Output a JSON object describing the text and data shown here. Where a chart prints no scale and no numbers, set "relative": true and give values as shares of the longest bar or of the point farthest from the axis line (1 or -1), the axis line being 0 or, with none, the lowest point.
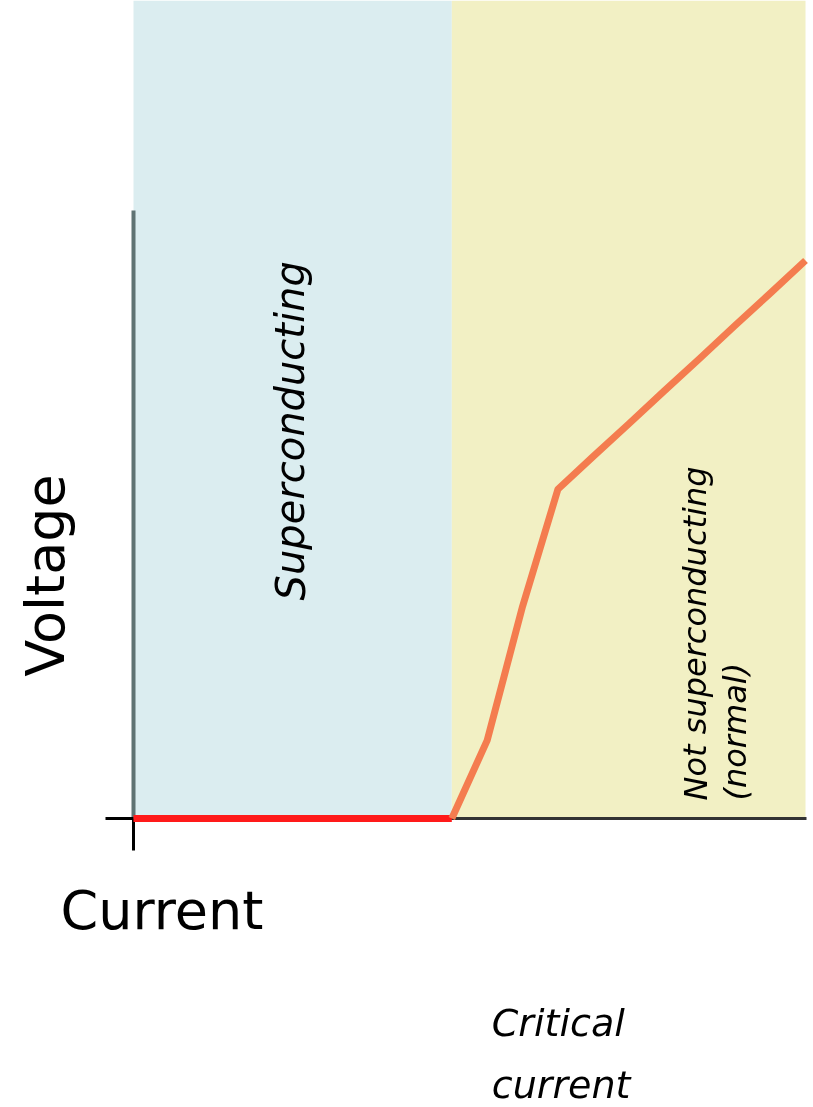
{
  "chart_data": {
    "type": "line",
    "relative": true,
    "xlabel": "Current",
    "ylabel": "Voltage",
    "line_style": "solid",
    "categories": [
      null,
      null,
      null,
      null,
      null,
      null,
      null,
      null,
      null,
      null,
      null,
      null,
      null,
      null,
      null,
      null,
      null,
      null,
      null,
      null
    ],
    "series": [
      {
        "color": "#ff1a1a",
        "values": [
          0,
          0,
          0,
          0,
          0,
          0,
          0,
          0,
          0,
          0,
          null,
          null,
          null,
          null,
          null,
          null,
          null,
          null,
          null,
          null
        ]
      },
      {
        "color": "#f47c4f",
        "values": [
          null,
          null,
          null,
          null,
          null,
          null,
          null,
          null,
          null,
          0,
          0.14,
          0.38,
          0.59,
          0.649,
          0.707,
          0.766,
          0.824,
          0.883,
          0.941,
          1.0
        ]
      }
    ],
    "annotations": [
      "Superconducting",
      "Not superconducting\n(normal)",
      "Critical\ncurrent"
    ]
  }
}
